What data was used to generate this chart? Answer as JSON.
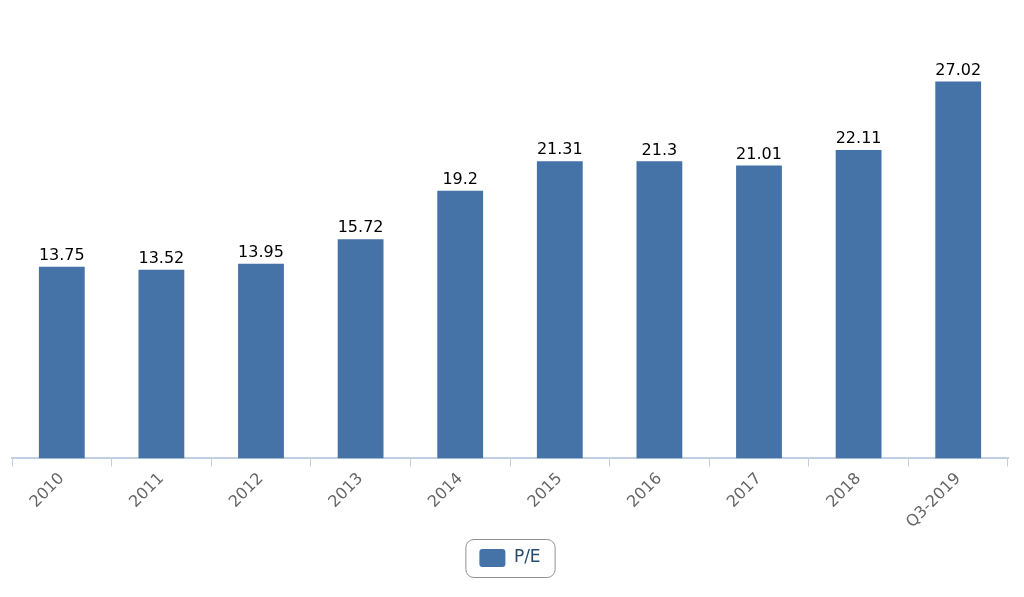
{
  "chart_data": {
    "type": "bar",
    "categories": [
      "2010",
      "2011",
      "2012",
      "2013",
      "2014",
      "2015",
      "2016",
      "2017",
      "2018",
      "Q3-2019"
    ],
    "series": [
      {
        "name": "P/E",
        "color": "#4572a7",
        "values": [
          13.75,
          13.52,
          13.95,
          15.72,
          19.2,
          21.31,
          21.3,
          21.01,
          22.11,
          27.02
        ]
      }
    ],
    "data_labels": true,
    "legend": "bottom",
    "grid": false,
    "tick_labels": "x"
  }
}
